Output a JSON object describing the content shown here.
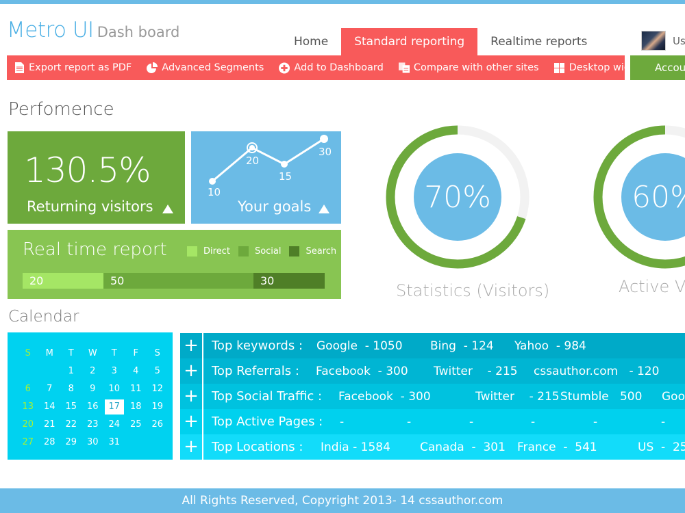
{
  "brand": {
    "title": "Metro UI",
    "subtitle": "Dash board"
  },
  "nav": {
    "tabs": [
      {
        "label": "Home",
        "active": false
      },
      {
        "label": "Standard reporting",
        "active": true
      },
      {
        "label": "Realtime reports",
        "active": false
      }
    ]
  },
  "user": {
    "label": "Us"
  },
  "toolbar": {
    "items": [
      {
        "label": "Export report as PDF",
        "icon": "document-icon"
      },
      {
        "label": "Advanced Segments",
        "icon": "pie-chart-icon"
      },
      {
        "label": "Add to Dashboard",
        "icon": "plus-circle-icon"
      },
      {
        "label": "Compare with other sites",
        "icon": "copy-icon"
      },
      {
        "label": "Desktop widgets",
        "icon": "grid-icon"
      }
    ],
    "account_label": "Account"
  },
  "performance": {
    "title": "Perfomence",
    "returning": {
      "value": "130.5%",
      "label": "Returning visitors"
    },
    "goals": {
      "label": "Your goals",
      "points": [
        "10",
        "20",
        "15",
        "30"
      ]
    },
    "realtime": {
      "title": "Real time report",
      "legend": [
        "Direct",
        "Social",
        "Search"
      ],
      "values": [
        "20",
        "50",
        "30"
      ]
    }
  },
  "donuts": [
    {
      "value": "70%",
      "label": "Statistics (Visitors)"
    },
    {
      "value": "60%",
      "label": "Active Visitors"
    }
  ],
  "calendar": {
    "title": "Calendar",
    "weekdays": [
      "S",
      "M",
      "T",
      "W",
      "T",
      "F",
      "S"
    ],
    "days": [
      "",
      "",
      "1",
      "2",
      "3",
      "4",
      "5",
      "6",
      "7",
      "8",
      "9",
      "10",
      "11",
      "12",
      "13",
      "14",
      "15",
      "16",
      "17",
      "18",
      "19",
      "20",
      "21",
      "22",
      "23",
      "24",
      "25",
      "26",
      "27",
      "28",
      "29",
      "30",
      "31"
    ],
    "today": "17"
  },
  "stats": [
    {
      "label": "Top keywords :",
      "items": [
        "Google  - 1050",
        "Bing  - 124",
        "Yahoo  - 984"
      ]
    },
    {
      "label": "Top Referrals :",
      "items": [
        "Facebook  - 300",
        "Twitter    - 215",
        "cssauthor.com   - 120"
      ]
    },
    {
      "label": "Top Social Traffic :",
      "items": [
        "Facebook  - 300",
        "Twitter    - 215",
        "Stumble   500",
        "Goo"
      ]
    },
    {
      "label": "Top Active Pages :",
      "items": [
        "-",
        "-",
        "-",
        "-",
        "-",
        "-",
        "-"
      ]
    },
    {
      "label": "Top Locations :",
      "items": [
        "India - 1584",
        "Canada  -  301",
        "France  -  541",
        "US  -  25"
      ]
    }
  ],
  "footer": {
    "text": "All Rights Reserved, Copyright 2013- 14   cssauthor.com"
  },
  "colors": {
    "red": "#f85a5a",
    "green": "#6da93c",
    "light_green": "#88c552",
    "blue": "#6bbbe6",
    "cyan": "#00d2f0"
  }
}
